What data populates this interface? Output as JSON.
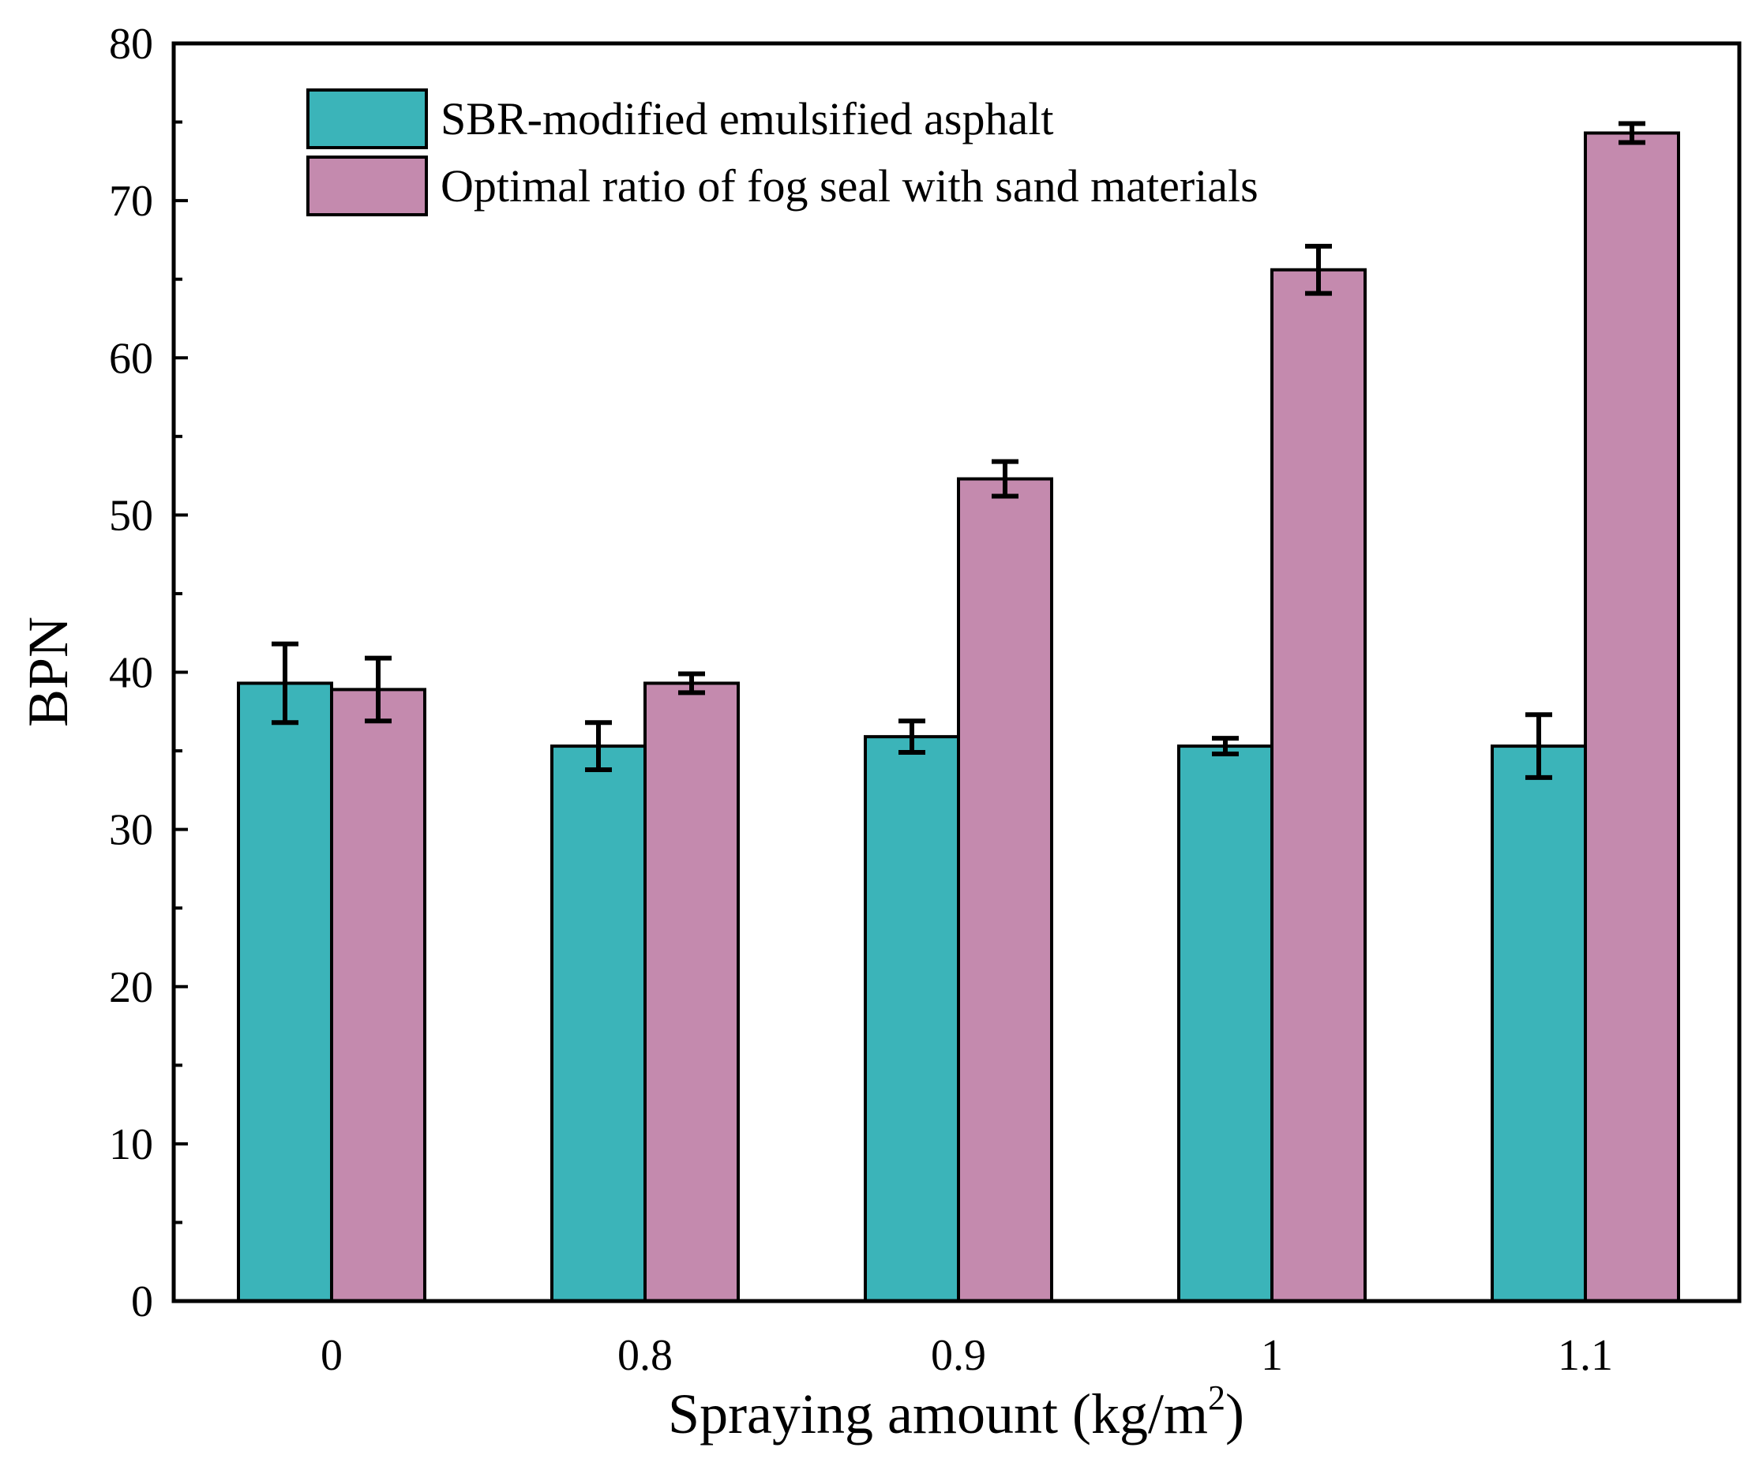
{
  "chart_data": {
    "type": "bar",
    "categories": [
      "0",
      "0.8",
      "0.9",
      "1",
      "1.1"
    ],
    "series": [
      {
        "name": "SBR-modified emulsified asphalt",
        "color": "#3bb4b9",
        "values": [
          39.3,
          35.3,
          35.9,
          35.3,
          35.3
        ],
        "errors": [
          2.5,
          1.5,
          1.0,
          0.5,
          2.0
        ]
      },
      {
        "name": "Optimal ratio of fog seal with sand materials",
        "color": "#c48aae",
        "values": [
          38.9,
          39.3,
          52.3,
          65.6,
          74.3
        ],
        "errors": [
          2.0,
          0.6,
          1.1,
          1.5,
          0.6
        ]
      }
    ],
    "xlabel": "Spraying amount (kg/m",
    "xlabel_sup": "2",
    "xlabel_end": ")",
    "ylabel": "BPN",
    "ylim": [
      0,
      80
    ],
    "yticks": [
      0,
      10,
      20,
      30,
      40,
      50,
      60,
      70,
      80
    ],
    "legend_position": "top-left",
    "grid": false
  }
}
